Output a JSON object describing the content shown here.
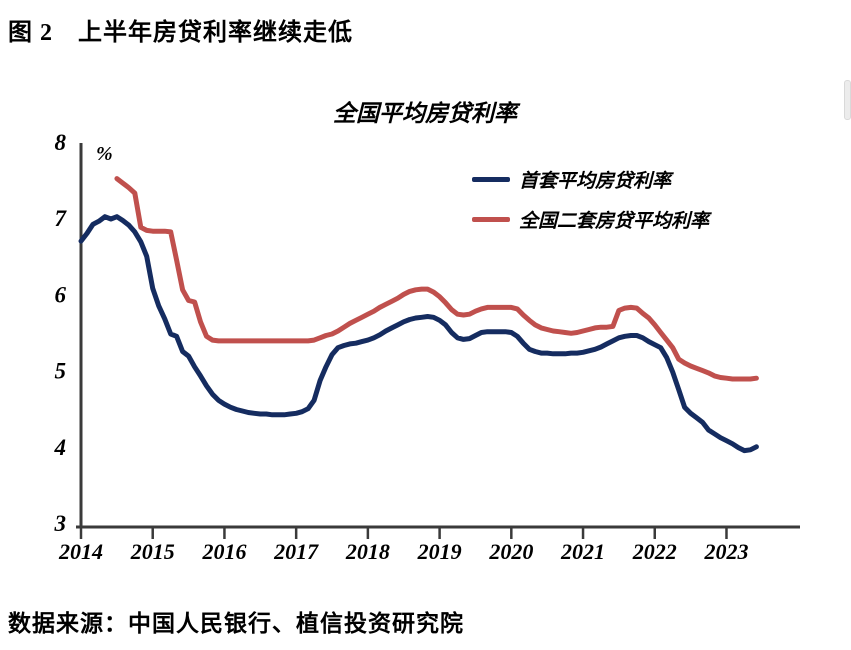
{
  "figure": {
    "caption": "图 2　上半年房贷利率继续走低",
    "source": "数据来源：中国人民银行、植信投资研究院"
  },
  "chart_data": {
    "type": "line",
    "title": "全国平均房贷利率",
    "unit_label": "%",
    "x_ticks": [
      "2014",
      "2015",
      "2016",
      "2017",
      "2018",
      "2019",
      "2020",
      "2021",
      "2022",
      "2023"
    ],
    "y_ticks": [
      8,
      7,
      6,
      5,
      4,
      3
    ],
    "ylim": [
      3,
      8
    ],
    "grid": false,
    "legend_position": "top-right-inside",
    "axis_color": "#3a3a3a",
    "x_unit": "month",
    "x_start": "2014-01",
    "x_end": "2023-06",
    "series": [
      {
        "name": "首套平均房贷利率",
        "color": "#152c60",
        "start_month": 0,
        "values": [
          6.7,
          6.8,
          6.92,
          6.96,
          7.02,
          6.99,
          7.02,
          6.97,
          6.91,
          6.82,
          6.69,
          6.5,
          6.08,
          5.85,
          5.68,
          5.48,
          5.45,
          5.25,
          5.19,
          5.05,
          4.93,
          4.8,
          4.69,
          4.61,
          4.56,
          4.52,
          4.49,
          4.47,
          4.45,
          4.44,
          4.43,
          4.43,
          4.42,
          4.42,
          4.42,
          4.43,
          4.44,
          4.46,
          4.5,
          4.61,
          4.87,
          5.05,
          5.21,
          5.3,
          5.33,
          5.35,
          5.36,
          5.38,
          5.4,
          5.43,
          5.47,
          5.52,
          5.56,
          5.6,
          5.64,
          5.67,
          5.69,
          5.7,
          5.71,
          5.7,
          5.66,
          5.6,
          5.5,
          5.43,
          5.41,
          5.42,
          5.46,
          5.5,
          5.51,
          5.51,
          5.51,
          5.51,
          5.5,
          5.45,
          5.36,
          5.28,
          5.25,
          5.23,
          5.23,
          5.22,
          5.22,
          5.22,
          5.23,
          5.23,
          5.24,
          5.26,
          5.28,
          5.31,
          5.35,
          5.39,
          5.43,
          5.45,
          5.46,
          5.46,
          5.43,
          5.38,
          5.34,
          5.3,
          5.17,
          4.98,
          4.75,
          4.52,
          4.44,
          4.38,
          4.32,
          4.22,
          4.17,
          4.12,
          4.08,
          4.04,
          3.99,
          3.95,
          3.96,
          4.0
        ]
      },
      {
        "name": "全国二套房贷平均利率",
        "color": "#c0504d",
        "start_month": 6,
        "values": [
          7.52,
          7.46,
          7.4,
          7.33,
          6.88,
          6.84,
          6.83,
          6.83,
          6.83,
          6.82,
          6.45,
          6.06,
          5.92,
          5.9,
          5.64,
          5.45,
          5.4,
          5.39,
          5.39,
          5.39,
          5.39,
          5.39,
          5.39,
          5.39,
          5.39,
          5.39,
          5.39,
          5.39,
          5.39,
          5.39,
          5.39,
          5.39,
          5.39,
          5.4,
          5.43,
          5.46,
          5.48,
          5.52,
          5.57,
          5.62,
          5.66,
          5.7,
          5.74,
          5.78,
          5.83,
          5.87,
          5.91,
          5.95,
          6.0,
          6.04,
          6.06,
          6.07,
          6.07,
          6.03,
          5.97,
          5.89,
          5.8,
          5.74,
          5.73,
          5.74,
          5.78,
          5.81,
          5.83,
          5.83,
          5.83,
          5.83,
          5.83,
          5.81,
          5.73,
          5.66,
          5.6,
          5.56,
          5.54,
          5.52,
          5.51,
          5.5,
          5.49,
          5.5,
          5.52,
          5.54,
          5.56,
          5.57,
          5.57,
          5.58,
          5.79,
          5.82,
          5.83,
          5.82,
          5.75,
          5.69,
          5.6,
          5.5,
          5.4,
          5.3,
          5.15,
          5.1,
          5.06,
          5.03,
          5.0,
          4.97,
          4.93,
          4.91,
          4.9,
          4.89,
          4.89,
          4.89,
          4.89,
          4.9
        ]
      }
    ]
  }
}
